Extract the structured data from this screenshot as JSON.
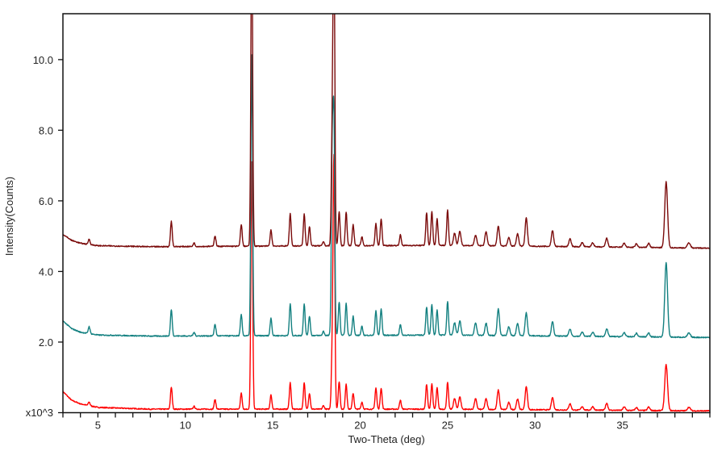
{
  "chart_data": {
    "type": "line",
    "title": "",
    "xlabel": "Two-Theta (deg)",
    "ylabel": "Intensity(Counts)",
    "y_multiplier_label": "x10^3",
    "xlim": [
      3,
      40
    ],
    "ylim": [
      0,
      11.3
    ],
    "x_ticks": [
      5,
      10,
      15,
      20,
      25,
      30,
      35
    ],
    "y_ticks": [
      {
        "value": 2,
        "label": "2.0"
      },
      {
        "value": 4,
        "label": "4.0"
      },
      {
        "value": 6,
        "label": "6.0"
      },
      {
        "value": 8,
        "label": "8.0"
      },
      {
        "value": 10,
        "label": "10.0"
      }
    ],
    "grid": false,
    "legend": "none",
    "peak_positions": [
      4.5,
      9.2,
      10.5,
      11.7,
      13.2,
      13.8,
      14.9,
      16.0,
      16.8,
      17.1,
      17.9,
      18.4,
      18.5,
      18.8,
      19.2,
      19.6,
      20.1,
      20.9,
      21.2,
      22.3,
      23.8,
      24.1,
      24.4,
      25.0,
      25.4,
      25.7,
      26.6,
      27.2,
      27.9,
      28.5,
      29.0,
      29.5,
      31.0,
      32.0,
      32.7,
      33.3,
      34.1,
      35.1,
      35.8,
      36.5,
      37.5,
      38.8
    ],
    "series": [
      {
        "color": "#ff0000",
        "baseline": [
          [
            3,
            0.6
          ],
          [
            3.5,
            0.35
          ],
          [
            4,
            0.25
          ],
          [
            5,
            0.15
          ],
          [
            8,
            0.1
          ],
          [
            15,
            0.1
          ],
          [
            25,
            0.1
          ],
          [
            40,
            0.05
          ]
        ],
        "peak_heights": [
          0.1,
          0.62,
          0.08,
          0.27,
          0.45,
          7.0,
          0.4,
          0.75,
          0.75,
          0.45,
          0.1,
          1.5,
          7.0,
          0.78,
          0.7,
          0.45,
          0.2,
          0.6,
          0.6,
          0.25,
          0.7,
          0.72,
          0.6,
          0.75,
          0.3,
          0.35,
          0.3,
          0.3,
          0.55,
          0.2,
          0.3,
          0.65,
          0.35,
          0.18,
          0.1,
          0.1,
          0.2,
          0.1,
          0.08,
          0.1,
          1.3,
          0.1
        ]
      },
      {
        "color": "#138080",
        "baseline": [
          [
            3,
            2.6
          ],
          [
            3.5,
            2.38
          ],
          [
            4,
            2.28
          ],
          [
            5,
            2.2
          ],
          [
            8,
            2.17
          ],
          [
            15,
            2.18
          ],
          [
            25,
            2.2
          ],
          [
            40,
            2.13
          ]
        ],
        "peak_heights": [
          0.2,
          0.75,
          0.1,
          0.33,
          0.6,
          7.95,
          0.5,
          0.9,
          0.9,
          0.55,
          0.12,
          5.0,
          5.85,
          0.95,
          0.9,
          0.55,
          0.25,
          0.7,
          0.75,
          0.3,
          0.8,
          0.85,
          0.7,
          0.95,
          0.35,
          0.4,
          0.35,
          0.35,
          0.75,
          0.25,
          0.35,
          0.65,
          0.4,
          0.2,
          0.12,
          0.12,
          0.22,
          0.12,
          0.1,
          0.12,
          2.1,
          0.12
        ]
      },
      {
        "color": "#7a0a0a",
        "baseline": [
          [
            3,
            5.05
          ],
          [
            3.5,
            4.88
          ],
          [
            4,
            4.8
          ],
          [
            5,
            4.73
          ],
          [
            8,
            4.7
          ],
          [
            15,
            4.72
          ],
          [
            25,
            4.74
          ],
          [
            40,
            4.66
          ]
        ],
        "peak_heights": [
          0.15,
          0.72,
          0.1,
          0.3,
          0.62,
          9.0,
          0.45,
          0.92,
          0.9,
          0.55,
          0.12,
          3.0,
          9.0,
          0.95,
          0.95,
          0.6,
          0.25,
          0.62,
          0.75,
          0.3,
          0.92,
          0.95,
          0.75,
          1.0,
          0.35,
          0.4,
          0.3,
          0.4,
          0.55,
          0.25,
          0.35,
          0.8,
          0.45,
          0.22,
          0.12,
          0.12,
          0.25,
          0.12,
          0.1,
          0.12,
          1.86,
          0.15
        ]
      }
    ]
  }
}
